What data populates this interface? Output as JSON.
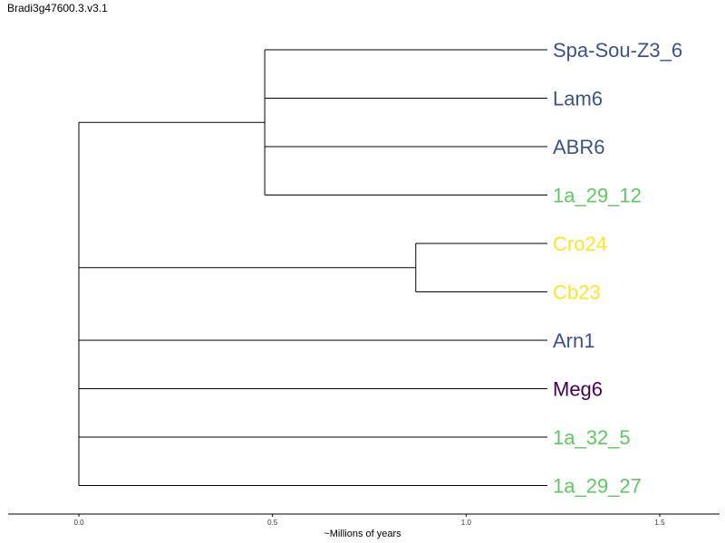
{
  "title": "Bradi3g47600.3.v3.1",
  "axis": {
    "label": "~Millions of years",
    "ticks": [
      {
        "value": 0.0,
        "label": "0.0"
      },
      {
        "value": 0.5,
        "label": "0.5"
      },
      {
        "value": 1.0,
        "label": "1.0"
      },
      {
        "value": 1.5,
        "label": "1.5"
      }
    ]
  },
  "colors": {
    "blue": "#3b528b",
    "green": "#5ec962",
    "yellow": "#fde725",
    "purple": "#440154",
    "line": "#000000"
  },
  "tree": {
    "id": "root",
    "height": 0,
    "children": [
      {
        "id": "clade-a",
        "height": 0.48,
        "children": [
          {
            "tip": "Spa-Sou-Z3_6",
            "color": "blue"
          },
          {
            "tip": "Lam6",
            "color": "blue"
          },
          {
            "tip": "ABR6",
            "color": "blue"
          },
          {
            "tip": "1a_29_12",
            "color": "green"
          }
        ]
      },
      {
        "id": "clade-b",
        "height": 0.87,
        "children": [
          {
            "tip": "Cro24",
            "color": "yellow"
          },
          {
            "tip": "Cb23",
            "color": "yellow"
          }
        ]
      },
      {
        "tip": "Arn1",
        "color": "blue"
      },
      {
        "tip": "Meg6",
        "color": "purple"
      },
      {
        "tip": "1a_32_5",
        "color": "green"
      },
      {
        "tip": "1a_29_27",
        "color": "green"
      }
    ]
  }
}
